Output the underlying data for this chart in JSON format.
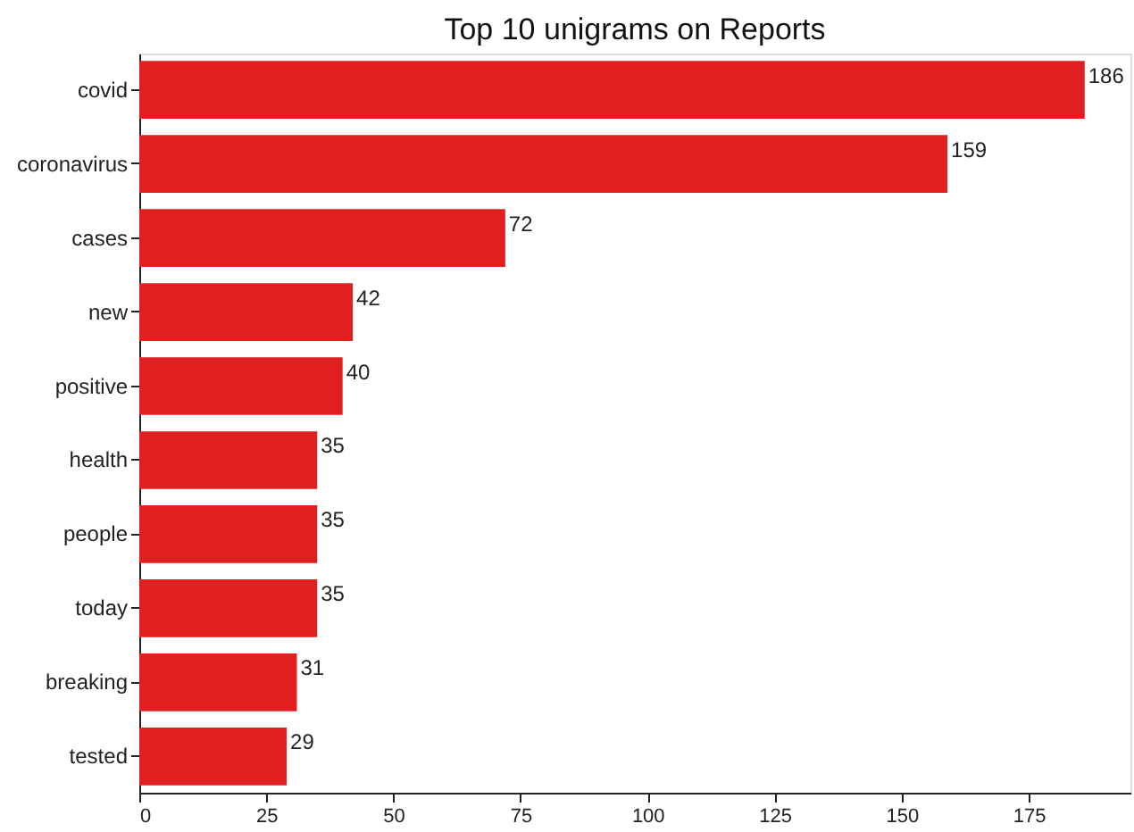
{
  "chart_data": {
    "type": "bar",
    "orientation": "horizontal",
    "title": "Top 10 unigrams on Reports",
    "categories": [
      "covid",
      "coronavirus",
      "cases",
      "new",
      "positive",
      "health",
      "people",
      "today",
      "breaking",
      "tested"
    ],
    "values": [
      186,
      159,
      72,
      42,
      40,
      35,
      35,
      35,
      31,
      29
    ],
    "color": "#e02020",
    "xlim": [
      0,
      195
    ],
    "xticks": [
      0,
      25,
      50,
      75,
      100,
      125,
      150,
      175
    ],
    "grid": false,
    "data_labels": true
  }
}
